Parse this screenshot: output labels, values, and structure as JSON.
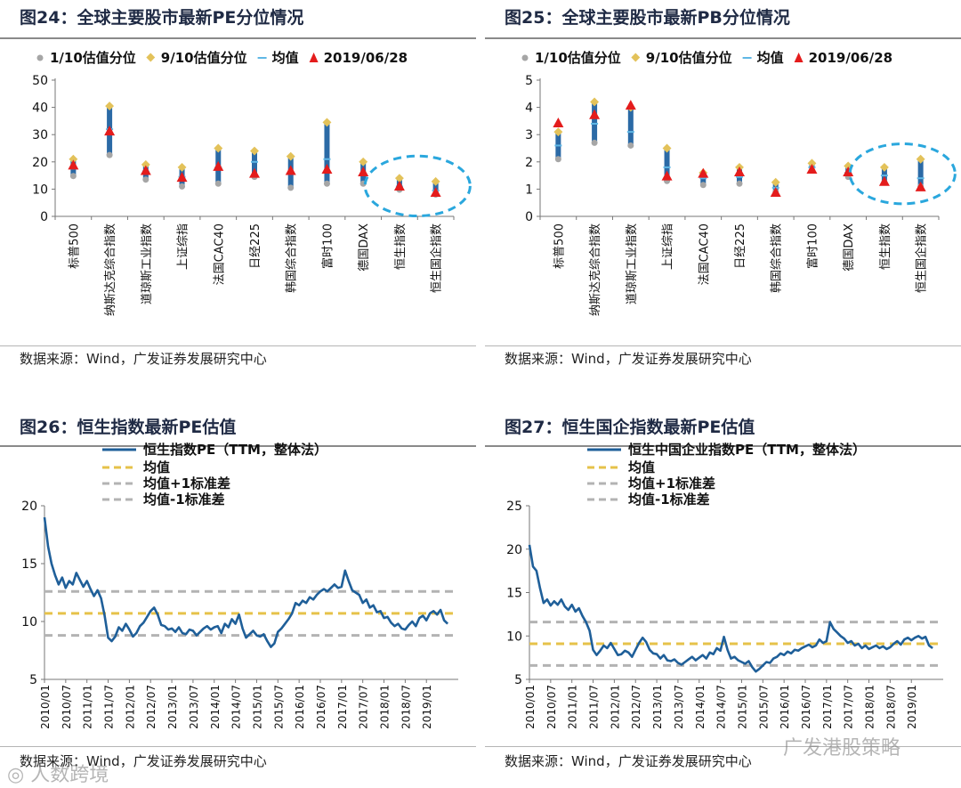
{
  "panels": {
    "p24": {
      "title": "图24：全球主要股市最新PE分位情况",
      "source": "数据来源：Wind，广发证券发展研究中心"
    },
    "p25": {
      "title": "图25：全球主要股市最新PB分位情况",
      "source": "数据来源：Wind，广发证券发展研究中心"
    },
    "p26": {
      "title": "图26：恒生指数最新PE估值",
      "source": "数据来源：Wind，广发证券发展研究中心"
    },
    "p27": {
      "title": "图27：恒生国企指数最新PE估值",
      "source": "数据来源：Wind，广发证券发展研究中心"
    }
  },
  "watermarks": {
    "left": "◎ 人数跨境",
    "right": "广发港股策略"
  },
  "colors": {
    "bar": "#2b6aa6",
    "line": "#1f5f99",
    "p10": "#a6a6a6",
    "p90": "#e3c25a",
    "mean_tick": "#5fb7e5",
    "latest": "#e41c1c",
    "mean_dash": "#e6c24a",
    "std_dash": "#b3b3b3",
    "highlight": "#2aa7dd"
  },
  "chart_data": [
    {
      "id": "pe_percentile",
      "type": "range",
      "title": "全球主要股市最新PE分位情况",
      "legend": [
        "1/10估值分位",
        "9/10估值分位",
        "均值",
        "2019/06/28"
      ],
      "categories": [
        "标普500",
        "纳斯达克综合指数",
        "道琼斯工业指数",
        "上证综指",
        "法国CAC40",
        "日经225",
        "韩国综合指数",
        "富时100",
        "德国DAX",
        "恒生指数",
        "恒生国企指数"
      ],
      "yticks": [
        0,
        10,
        20,
        30,
        40,
        50
      ],
      "ylim": [
        0,
        50
      ],
      "p10": [
        14.8,
        22.5,
        13.5,
        11.0,
        12.0,
        14.5,
        10.5,
        12.0,
        12.0,
        9.8,
        8.0
      ],
      "p90": [
        21.0,
        40.5,
        19.0,
        18.0,
        25.0,
        24.0,
        22.0,
        34.5,
        20.0,
        14.0,
        12.8
      ],
      "mean": [
        17.5,
        32.0,
        16.5,
        14.5,
        18.0,
        20.0,
        15.5,
        21.0,
        15.5,
        11.0,
        9.5
      ],
      "latest": [
        18.5,
        31.0,
        16.5,
        14.0,
        18.0,
        15.5,
        16.5,
        17.0,
        16.0,
        10.8,
        8.5
      ],
      "highlight_categories": [
        "恒生指数",
        "恒生国企指数"
      ]
    },
    {
      "id": "pb_percentile",
      "type": "range",
      "title": "全球主要股市最新PB分位情况",
      "legend": [
        "1/10估值分位",
        "9/10估值分位",
        "均值",
        "2019/06/28"
      ],
      "categories": [
        "标普500",
        "纳斯达克综合指数",
        "道琼斯工业指数",
        "上证综指",
        "法国CAC40",
        "日经225",
        "韩国综合指数",
        "富时100",
        "德国DAX",
        "恒生指数",
        "恒生国企指数"
      ],
      "yticks": [
        0,
        1,
        2,
        3,
        4,
        5
      ],
      "ylim": [
        0,
        5
      ],
      "p10": [
        2.1,
        2.7,
        2.6,
        1.3,
        1.15,
        1.2,
        0.9,
        1.7,
        1.45,
        1.25,
        1.1
      ],
      "p90": [
        3.1,
        4.2,
        4.0,
        2.5,
        1.6,
        1.8,
        1.25,
        1.95,
        1.85,
        1.8,
        2.1
      ],
      "mean": [
        2.6,
        3.4,
        3.1,
        1.8,
        1.4,
        1.45,
        1.05,
        1.8,
        1.6,
        1.5,
        1.4
      ],
      "latest": [
        3.4,
        3.7,
        4.05,
        1.45,
        1.55,
        1.6,
        0.85,
        1.7,
        1.6,
        1.25,
        1.05
      ],
      "highlight_categories": [
        "恒生指数",
        "恒生国企指数"
      ]
    },
    {
      "id": "hsi_pe",
      "type": "line",
      "title": "恒生指数最新PE估值",
      "legend": [
        "恒生指数PE（TTM，整体法）",
        "均值",
        "均值+1标准差",
        "均值-1标准差"
      ],
      "x_tick_labels": [
        "2010/01",
        "2010/07",
        "2011/01",
        "2011/07",
        "2012/01",
        "2012/07",
        "2013/01",
        "2013/07",
        "2014/01",
        "2014/07",
        "2015/01",
        "2015/07",
        "2016/01",
        "2016/07",
        "2017/01",
        "2017/07",
        "2018/01",
        "2018/07",
        "2019/01"
      ],
      "yticks": [
        5,
        10,
        15,
        20
      ],
      "ylim": [
        5,
        20
      ],
      "xlim": [
        0,
        117
      ],
      "mean": 10.7,
      "mean_plus_1sd": 12.6,
      "mean_minus_1sd": 8.8,
      "x": [
        0,
        1,
        2,
        3,
        4,
        5,
        6,
        7,
        8,
        9,
        10,
        11,
        12,
        13,
        14,
        15,
        16,
        17,
        18,
        19,
        20,
        21,
        22,
        23,
        24,
        25,
        26,
        27,
        28,
        29,
        30,
        31,
        32,
        33,
        34,
        35,
        36,
        37,
        38,
        39,
        40,
        41,
        42,
        43,
        44,
        45,
        46,
        47,
        48,
        49,
        50,
        51,
        52,
        53,
        54,
        55,
        56,
        57,
        58,
        59,
        60,
        61,
        62,
        63,
        64,
        65,
        66,
        67,
        68,
        69,
        70,
        71,
        72,
        73,
        74,
        75,
        76,
        77,
        78,
        79,
        80,
        81,
        82,
        83,
        84,
        85,
        86,
        87,
        88,
        89,
        90,
        91,
        92,
        93,
        94,
        95,
        96,
        97,
        98,
        99,
        100,
        101,
        102,
        103,
        104,
        105,
        106,
        107,
        108,
        109,
        110,
        111,
        112,
        113,
        114
      ],
      "values": [
        19.0,
        16.5,
        15.0,
        14.0,
        13.2,
        13.8,
        12.9,
        13.5,
        13.2,
        14.2,
        13.6,
        13.0,
        13.5,
        12.8,
        12.2,
        12.7,
        12.0,
        10.5,
        8.6,
        8.3,
        8.7,
        9.5,
        9.2,
        9.8,
        9.3,
        8.7,
        9.0,
        9.6,
        9.9,
        10.4,
        10.9,
        11.2,
        10.6,
        9.7,
        9.6,
        9.3,
        9.4,
        9.1,
        9.5,
        9.0,
        8.9,
        9.3,
        9.2,
        8.8,
        9.1,
        9.4,
        9.6,
        9.3,
        9.5,
        9.6,
        9.0,
        9.8,
        9.5,
        10.2,
        9.8,
        10.6,
        9.4,
        8.6,
        8.9,
        9.2,
        8.8,
        8.7,
        8.9,
        8.3,
        7.8,
        8.1,
        9.1,
        9.4,
        9.8,
        10.2,
        10.7,
        11.6,
        11.4,
        11.8,
        11.6,
        12.1,
        11.9,
        12.3,
        12.6,
        12.8,
        12.6,
        12.9,
        13.2,
        12.9,
        13.0,
        14.4,
        13.5,
        12.7,
        12.5,
        12.3,
        11.6,
        11.9,
        11.2,
        11.4,
        10.8,
        10.9,
        10.3,
        10.4,
        9.9,
        9.6,
        9.8,
        9.4,
        9.3,
        9.7,
        10.0,
        9.6,
        10.3,
        10.5,
        10.1,
        10.7,
        10.9,
        10.6,
        11.0,
        10.1,
        9.8
      ]
    },
    {
      "id": "hscei_pe",
      "type": "line",
      "title": "恒生国企指数最新PE估值",
      "legend": [
        "恒生中国企业指数PE（TTM，整体法）",
        "均值",
        "均值+1标准差",
        "均值-1标准差"
      ],
      "x_tick_labels": [
        "2010/01",
        "2010/07",
        "2011/01",
        "2011/07",
        "2012/01",
        "2012/07",
        "2013/01",
        "2013/07",
        "2014/01",
        "2014/07",
        "2015/01",
        "2015/07",
        "2016/01",
        "2016/07",
        "2017/01",
        "2017/07",
        "2018/01",
        "2018/07",
        "2019/01"
      ],
      "yticks": [
        5,
        10,
        15,
        20,
        25
      ],
      "ylim": [
        5,
        25
      ],
      "xlim": [
        0,
        117
      ],
      "mean": 9.1,
      "mean_plus_1sd": 11.6,
      "mean_minus_1sd": 6.6,
      "x": [
        0,
        1,
        2,
        3,
        4,
        5,
        6,
        7,
        8,
        9,
        10,
        11,
        12,
        13,
        14,
        15,
        16,
        17,
        18,
        19,
        20,
        21,
        22,
        23,
        24,
        25,
        26,
        27,
        28,
        29,
        30,
        31,
        32,
        33,
        34,
        35,
        36,
        37,
        38,
        39,
        40,
        41,
        42,
        43,
        44,
        45,
        46,
        47,
        48,
        49,
        50,
        51,
        52,
        53,
        54,
        55,
        56,
        57,
        58,
        59,
        60,
        61,
        62,
        63,
        64,
        65,
        66,
        67,
        68,
        69,
        70,
        71,
        72,
        73,
        74,
        75,
        76,
        77,
        78,
        79,
        80,
        81,
        82,
        83,
        84,
        85,
        86,
        87,
        88,
        89,
        90,
        91,
        92,
        93,
        94,
        95,
        96,
        97,
        98,
        99,
        100,
        101,
        102,
        103,
        104,
        105,
        106,
        107,
        108,
        109,
        110,
        111,
        112,
        113,
        114
      ],
      "values": [
        20.5,
        18.0,
        17.5,
        15.5,
        13.8,
        14.2,
        13.5,
        14.0,
        13.6,
        14.2,
        13.4,
        13.0,
        13.6,
        12.8,
        13.2,
        12.3,
        11.6,
        10.6,
        8.4,
        7.8,
        8.3,
        8.9,
        8.6,
        9.2,
        8.5,
        7.8,
        7.9,
        8.3,
        8.1,
        7.6,
        8.4,
        9.2,
        9.8,
        9.3,
        8.4,
        8.0,
        7.9,
        7.4,
        7.8,
        7.2,
        7.1,
        7.3,
        6.9,
        6.7,
        7.0,
        7.3,
        7.6,
        7.2,
        7.5,
        7.8,
        7.4,
        8.1,
        7.9,
        8.6,
        8.3,
        9.9,
        8.4,
        7.4,
        7.6,
        7.2,
        7.0,
        6.8,
        7.1,
        6.4,
        5.9,
        6.2,
        6.6,
        7.0,
        6.9,
        7.4,
        7.6,
        8.0,
        7.8,
        8.2,
        8.0,
        8.4,
        8.3,
        8.6,
        8.8,
        9.0,
        8.7,
        8.9,
        9.6,
        9.2,
        9.4,
        11.6,
        10.8,
        10.4,
        10.0,
        9.7,
        9.2,
        9.4,
        8.9,
        9.1,
        8.6,
        8.9,
        8.5,
        8.7,
        8.9,
        8.6,
        8.8,
        8.5,
        8.7,
        9.1,
        9.4,
        9.0,
        9.6,
        9.8,
        9.5,
        9.8,
        10.0,
        9.7,
        9.9,
        8.9,
        8.6
      ]
    }
  ]
}
